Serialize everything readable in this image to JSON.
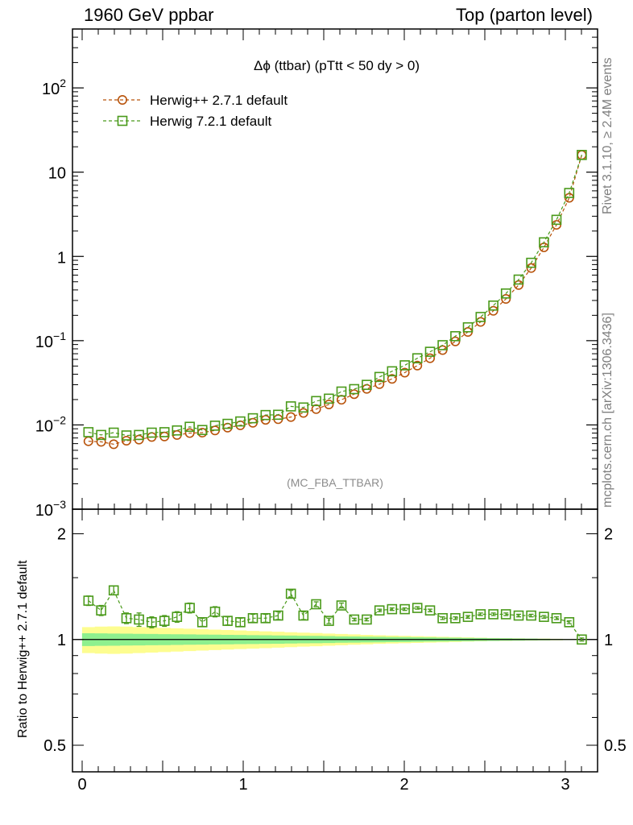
{
  "header": {
    "left": "1960 GeV ppbar",
    "right": "Top (parton level)"
  },
  "side_labels": {
    "rivet": "Rivet 3.1.10, ≥ 2.4M events",
    "mcplots": "mcplots.cern.ch [arXiv:1306.3436]"
  },
  "chart_data": [
    {
      "type": "line",
      "title": "Δϕ (ttbar) (pTtt < 50 dy > 0)",
      "watermark": "(MC_FBA_TTBAR)",
      "yscale": "log",
      "ylim": [
        0.001,
        500
      ],
      "xlim": [
        -0.06,
        3.2
      ],
      "legend_position": "top-left",
      "y_tick_labels": [
        "10^-3",
        "10^-2",
        "10^-1",
        "1",
        "10",
        "10^2"
      ],
      "x": [
        0.039,
        0.118,
        0.196,
        0.275,
        0.353,
        0.432,
        0.511,
        0.589,
        0.668,
        0.746,
        0.825,
        0.903,
        0.982,
        1.06,
        1.139,
        1.217,
        1.296,
        1.374,
        1.453,
        1.532,
        1.61,
        1.689,
        1.767,
        1.846,
        1.924,
        2.003,
        2.081,
        2.16,
        2.238,
        2.317,
        2.395,
        2.474,
        2.553,
        2.631,
        2.71,
        2.788,
        2.867,
        2.945,
        3.024,
        3.102
      ],
      "series": [
        {
          "name": "Herwig++ 2.7.1 default",
          "color": "#b8530b",
          "marker": "circle",
          "values": [
            0.0064,
            0.0063,
            0.0059,
            0.0065,
            0.0067,
            0.0072,
            0.0073,
            0.0076,
            0.008,
            0.0081,
            0.0086,
            0.0093,
            0.0099,
            0.0106,
            0.0115,
            0.0117,
            0.0124,
            0.0139,
            0.0154,
            0.0175,
            0.0199,
            0.0232,
            0.0268,
            0.0305,
            0.0352,
            0.0418,
            0.0506,
            0.0619,
            0.0773,
            0.0981,
            0.127,
            0.167,
            0.226,
            0.313,
            0.458,
            0.728,
            1.28,
            2.37,
            4.96,
            16.0
          ]
        },
        {
          "name": "Herwig 7.2.1 default",
          "color": "#4a9a1a",
          "marker": "square",
          "values": [
            0.0082,
            0.0076,
            0.0081,
            0.0075,
            0.0076,
            0.0081,
            0.0082,
            0.0086,
            0.0095,
            0.0087,
            0.0098,
            0.0103,
            0.011,
            0.012,
            0.0131,
            0.0132,
            0.0166,
            0.0161,
            0.0192,
            0.0205,
            0.0249,
            0.0266,
            0.0299,
            0.0371,
            0.0433,
            0.051,
            0.0618,
            0.0738,
            0.0884,
            0.113,
            0.144,
            0.191,
            0.261,
            0.363,
            0.531,
            0.84,
            1.47,
            2.72,
            5.66,
            16.0
          ]
        }
      ]
    },
    {
      "type": "line",
      "ylabel": "Ratio to Herwig++ 2.7.1 default",
      "yscale": "log",
      "ylim": [
        0.42,
        2.35
      ],
      "xlim": [
        -0.06,
        3.2
      ],
      "x_tick_labels": [
        "0",
        "1",
        "2",
        "3"
      ],
      "y_tick_labels": [
        "0.5",
        "1",
        "2"
      ],
      "band_colors": {
        "inner": "#8ef08e",
        "outer": "#fdfd90"
      },
      "band_inner_halfwidth": [
        0.042,
        0.041,
        0.04,
        0.039,
        0.038,
        0.037,
        0.036,
        0.035,
        0.034,
        0.033,
        0.032,
        0.031,
        0.03,
        0.029,
        0.028,
        0.027,
        0.026,
        0.025,
        0.024,
        0.023,
        0.021,
        0.02,
        0.019,
        0.018,
        0.017,
        0.016,
        0.015,
        0.014,
        0.013,
        0.012,
        0.011,
        0.01,
        0.009,
        0.008,
        0.007,
        0.006,
        0.005,
        0.004,
        0.003,
        0.002
      ],
      "band_outer_halfwidth": [
        0.085,
        0.088,
        0.09,
        0.088,
        0.085,
        0.082,
        0.079,
        0.076,
        0.073,
        0.07,
        0.067,
        0.064,
        0.061,
        0.058,
        0.055,
        0.052,
        0.049,
        0.046,
        0.043,
        0.04,
        0.037,
        0.034,
        0.031,
        0.028,
        0.026,
        0.024,
        0.022,
        0.02,
        0.018,
        0.016,
        0.014,
        0.012,
        0.01,
        0.009,
        0.008,
        0.007,
        0.006,
        0.005,
        0.004,
        0.003
      ],
      "series": [
        {
          "name": "Herwig 7.2.1 default",
          "color": "#4a9a1a",
          "marker": "square",
          "values": [
            1.29,
            1.21,
            1.38,
            1.15,
            1.14,
            1.12,
            1.13,
            1.16,
            1.23,
            1.12,
            1.2,
            1.13,
            1.12,
            1.15,
            1.15,
            1.17,
            1.35,
            1.17,
            1.26,
            1.13,
            1.25,
            1.14,
            1.14,
            1.21,
            1.22,
            1.22,
            1.23,
            1.21,
            1.15,
            1.15,
            1.16,
            1.18,
            1.18,
            1.18,
            1.17,
            1.17,
            1.16,
            1.15,
            1.12,
            1.0
          ],
          "errors": [
            0.04,
            0.04,
            0.04,
            0.04,
            0.05,
            0.04,
            0.04,
            0.04,
            0.04,
            0.03,
            0.04,
            0.03,
            0.03,
            0.03,
            0.03,
            0.03,
            0.03,
            0.03,
            0.02,
            0.02,
            0.02,
            0.01,
            0.01,
            0.01,
            0.01,
            0.01,
            0.01,
            0.01,
            0.01,
            0.01,
            0.01,
            0.01,
            0.01,
            0.01,
            0.01,
            0.01,
            0.01,
            0.01,
            0.01,
            0.01
          ]
        }
      ]
    }
  ]
}
